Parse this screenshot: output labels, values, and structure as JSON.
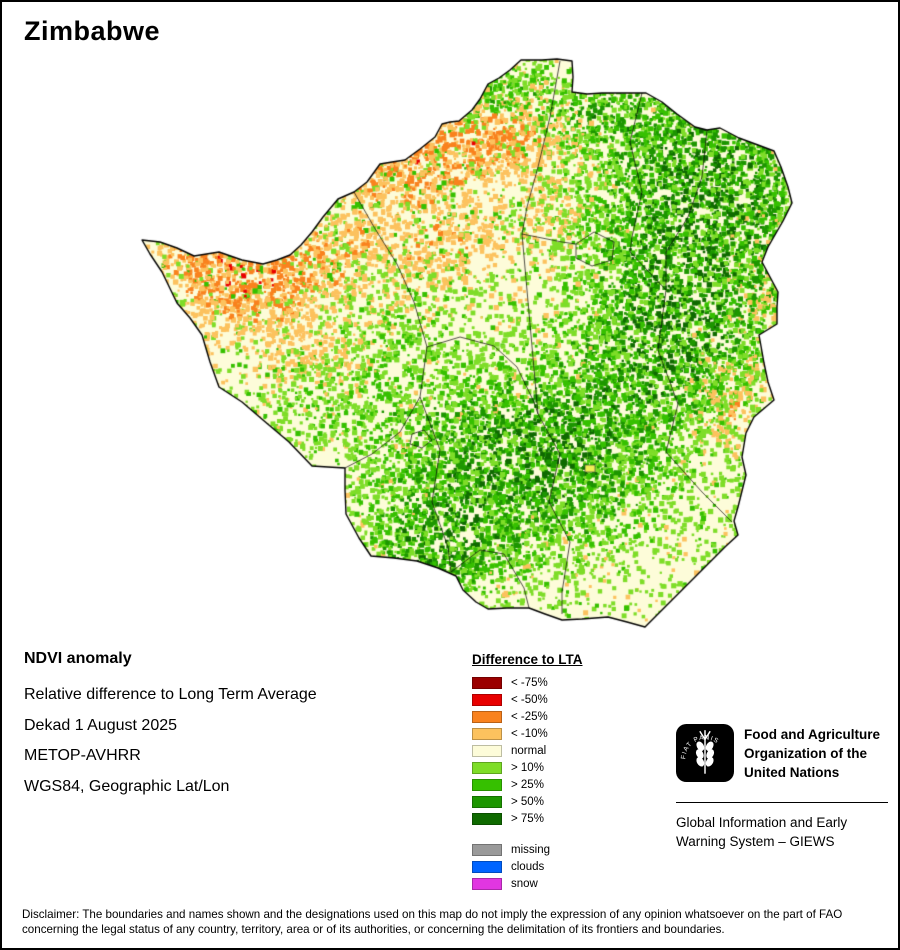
{
  "page": {
    "title": "Zimbabwe"
  },
  "info": {
    "heading": "NDVI anomaly",
    "lines": [
      "Relative difference to Long Term Average",
      "Dekad 1 August 2025",
      "METOP-AVHRR",
      "WGS84, Geographic Lat/Lon"
    ]
  },
  "legend": {
    "title": "Difference to LTA",
    "items": [
      {
        "label": "< -75%",
        "color": "#9B0000"
      },
      {
        "label": "< -50%",
        "color": "#E80000"
      },
      {
        "label": "< -25%",
        "color": "#F9821E"
      },
      {
        "label": "< -10%",
        "color": "#FCC25E"
      },
      {
        "label": "normal",
        "color": "#FDFCD9"
      },
      {
        "label": "> 10%",
        "color": "#7EDD28"
      },
      {
        "label": "> 25%",
        "color": "#36C000"
      },
      {
        "label": "> 50%",
        "color": "#1D9600"
      },
      {
        "label": "> 75%",
        "color": "#0F6A00"
      }
    ],
    "extra_items": [
      {
        "label": "missing",
        "color": "#9A9A9A"
      },
      {
        "label": "clouds",
        "color": "#0064FF"
      },
      {
        "label": "snow",
        "color": "#E136E1"
      }
    ]
  },
  "map": {
    "country": "Zimbabwe",
    "border_color": "#000000"
  },
  "footer": {
    "fao_name_lines": [
      "Food and Agriculture",
      "Organization of the",
      "United Nations"
    ],
    "giews": "Global Information and Early Warning System – GIEWS",
    "logo_motto": "FIAT PANIS"
  },
  "disclaimer": "Disclaimer: The boundaries and names shown and the designations used on this map do not imply the expression of any opinion whatsoever on the part of FAO concerning the legal status of any country, territory, area or of its authorities, or concerning the delimitation of its frontiers and boundaries."
}
